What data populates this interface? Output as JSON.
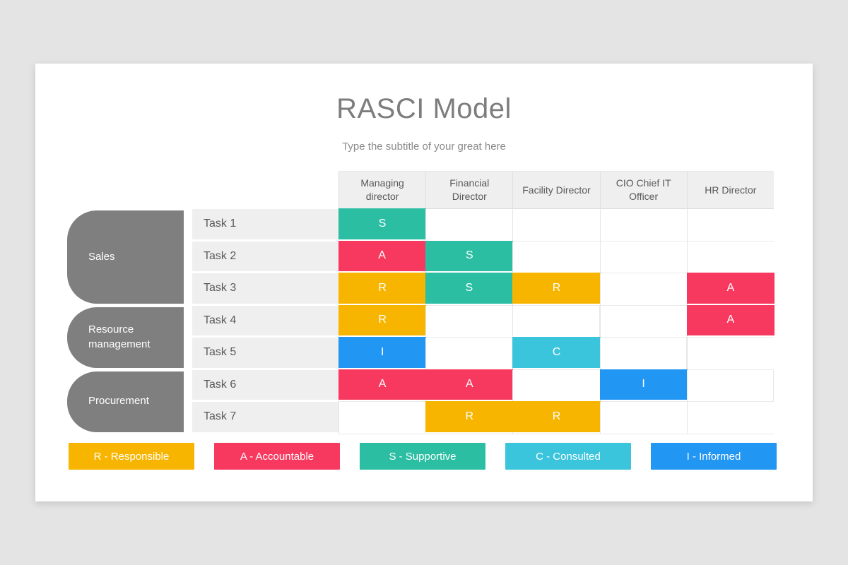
{
  "slide": {
    "title": "RASCI Model",
    "subtitle": "Type the subtitle of your great here"
  },
  "matrix": {
    "columns": [
      "Managing director",
      "Financial Director",
      "Facility Director",
      "CIO Chief IT Officer",
      "HR Director"
    ],
    "groups": [
      {
        "label": "Sales",
        "span": 3
      },
      {
        "label": "Resource management",
        "span": 2
      },
      {
        "label": "Procurement",
        "span": 2
      }
    ],
    "rows": [
      {
        "task": "Task 1",
        "cells": [
          "S",
          "",
          "",
          "",
          ""
        ]
      },
      {
        "task": "Task 2",
        "cells": [
          "A",
          "S",
          "",
          "",
          ""
        ]
      },
      {
        "task": "Task 3",
        "cells": [
          "R",
          "S",
          "R",
          "",
          "A"
        ]
      },
      {
        "task": "Task 4",
        "cells": [
          "R",
          "",
          "",
          "",
          "A"
        ]
      },
      {
        "task": "Task 5",
        "cells": [
          "I",
          "",
          "C",
          "",
          ""
        ]
      },
      {
        "task": "Task 6",
        "cells": [
          "A",
          "A",
          "",
          "I",
          ""
        ]
      },
      {
        "task": "Task 7",
        "cells": [
          "",
          "R",
          "R",
          "",
          ""
        ]
      }
    ]
  },
  "colors": {
    "R": "#f8b500",
    "A": "#f8395f",
    "S": "#2bbea3",
    "C": "#3bc5dc",
    "I": "#2196f3",
    "group": "#7f7f7f"
  },
  "legend": [
    {
      "key": "R",
      "label": "R - Responsible",
      "color": "#f8b500"
    },
    {
      "key": "A",
      "label": "A - Accountable",
      "color": "#f8395f"
    },
    {
      "key": "S",
      "label": "S - Supportive",
      "color": "#2bbea3"
    },
    {
      "key": "C",
      "label": "C - Consulted",
      "color": "#3bc5dc"
    },
    {
      "key": "I",
      "label": "I - Informed",
      "color": "#2196f3"
    }
  ]
}
